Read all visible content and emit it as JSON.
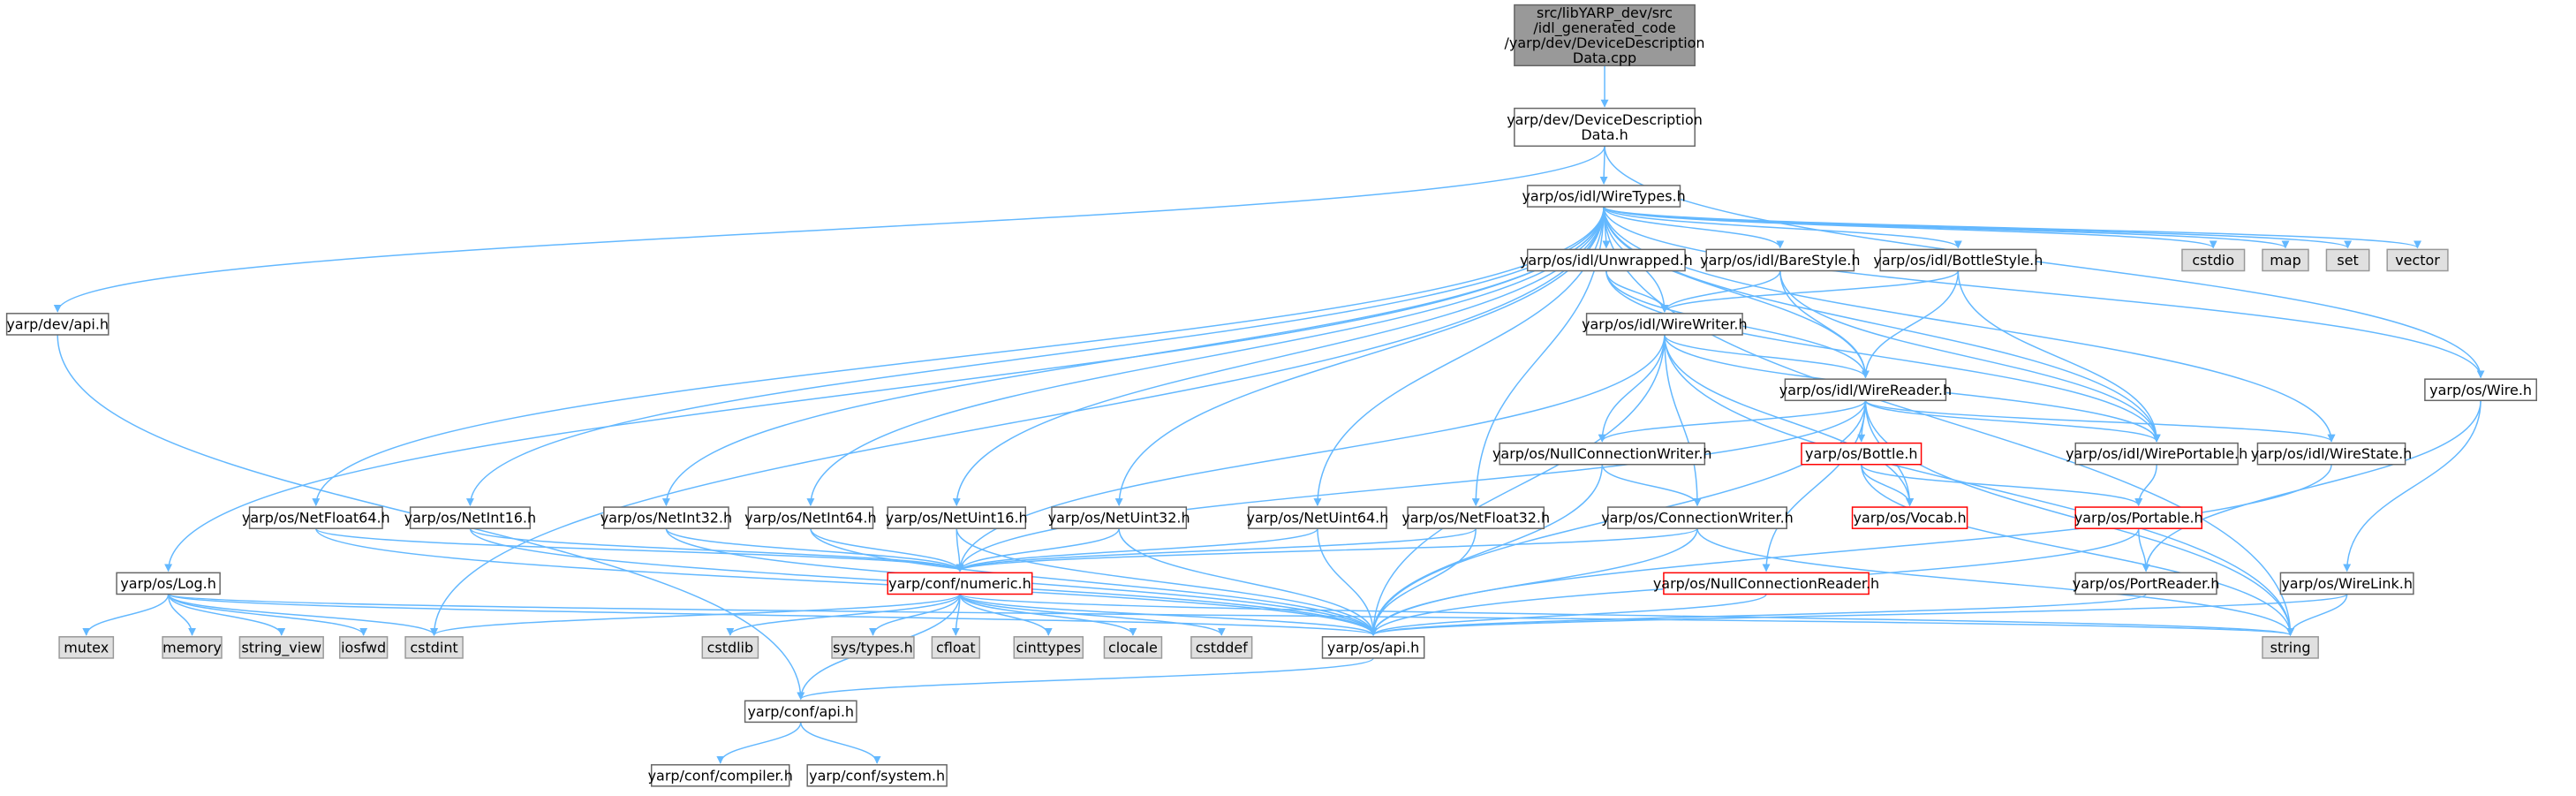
{
  "nodes": [
    {
      "lines": [
        "src/libYARP_dev/src",
        "/idl_generated_code",
        "/yarp/dev/DeviceDescription",
        "Data.cpp"
      ]
    },
    {
      "lines": [
        "yarp/dev/DeviceDescription",
        "Data.h"
      ]
    },
    {
      "lines": [
        "yarp/os/idl/WireTypes.h"
      ]
    },
    {
      "lines": [
        "yarp/dev/api.h"
      ]
    },
    {
      "lines": [
        "yarp/os/Log.h"
      ]
    },
    {
      "lines": [
        "cstdio"
      ]
    },
    {
      "lines": [
        "map"
      ]
    },
    {
      "lines": [
        "set"
      ]
    },
    {
      "lines": [
        "vector"
      ]
    },
    {
      "lines": [
        "yarp/os/idl/Unwrapped.h"
      ]
    },
    {
      "lines": [
        "yarp/os/idl/BareStyle.h"
      ]
    },
    {
      "lines": [
        "yarp/os/idl/BottleStyle.h"
      ]
    },
    {
      "lines": [
        "yarp/os/idl/WireWriter.h"
      ]
    },
    {
      "lines": [
        "yarp/os/idl/WireReader.h"
      ]
    },
    {
      "lines": [
        "yarp/os/Wire.h"
      ]
    },
    {
      "lines": [
        "yarp/os/NullConnectionWriter.h"
      ]
    },
    {
      "lines": [
        "yarp/os/Bottle.h"
      ]
    },
    {
      "lines": [
        "yarp/os/idl/WirePortable.h"
      ]
    },
    {
      "lines": [
        "yarp/os/idl/WireState.h"
      ]
    },
    {
      "lines": [
        "yarp/os/NetFloat64.h"
      ]
    },
    {
      "lines": [
        "yarp/os/NetInt16.h"
      ]
    },
    {
      "lines": [
        "yarp/os/NetInt32.h"
      ]
    },
    {
      "lines": [
        "yarp/os/NetInt64.h"
      ]
    },
    {
      "lines": [
        "yarp/os/NetUint16.h"
      ]
    },
    {
      "lines": [
        "yarp/os/NetUint32.h"
      ]
    },
    {
      "lines": [
        "yarp/os/NetUint64.h"
      ]
    },
    {
      "lines": [
        "yarp/os/NetFloat32.h"
      ]
    },
    {
      "lines": [
        "yarp/os/ConnectionWriter.h"
      ]
    },
    {
      "lines": [
        "yarp/os/Vocab.h"
      ]
    },
    {
      "lines": [
        "yarp/os/Portable.h"
      ]
    },
    {
      "lines": [
        "yarp/conf/numeric.h"
      ]
    },
    {
      "lines": [
        "yarp/os/NullConnectionReader.h"
      ]
    },
    {
      "lines": [
        "yarp/os/PortReader.h"
      ]
    },
    {
      "lines": [
        "yarp/os/WireLink.h"
      ]
    },
    {
      "lines": [
        "mutex"
      ]
    },
    {
      "lines": [
        "memory"
      ]
    },
    {
      "lines": [
        "string_view"
      ]
    },
    {
      "lines": [
        "iosfwd"
      ]
    },
    {
      "lines": [
        "cstdint"
      ]
    },
    {
      "lines": [
        "cstdlib"
      ]
    },
    {
      "lines": [
        "sys/types.h"
      ]
    },
    {
      "lines": [
        "cfloat"
      ]
    },
    {
      "lines": [
        "cinttypes"
      ]
    },
    {
      "lines": [
        "clocale"
      ]
    },
    {
      "lines": [
        "cstddef"
      ]
    },
    {
      "lines": [
        "yarp/os/api.h"
      ]
    },
    {
      "lines": [
        "string"
      ]
    },
    {
      "lines": [
        "yarp/conf/api.h"
      ]
    },
    {
      "lines": [
        "yarp/conf/compiler.h"
      ]
    },
    {
      "lines": [
        "yarp/conf/system.h"
      ]
    }
  ]
}
